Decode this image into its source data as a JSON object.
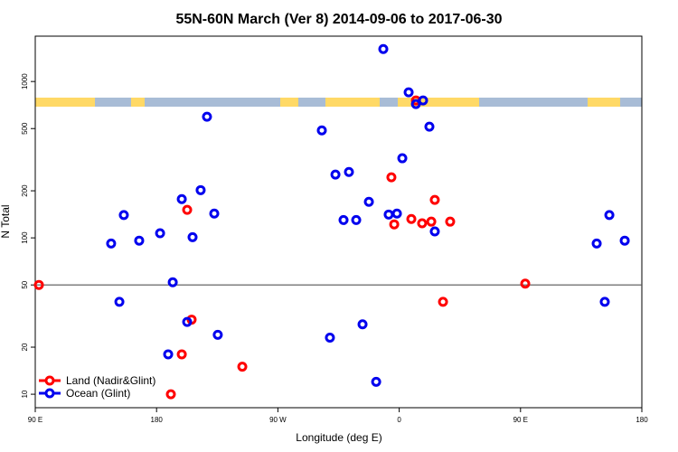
{
  "chart_data": {
    "type": "scatter",
    "title": "55N-60N March (Ver 8)   2014-09-06 to 2017-06-30",
    "xlabel": "Longitude (deg E)",
    "ylabel": "N Total",
    "xlim": [
      90,
      540
    ],
    "xticks": [
      {
        "value": 90,
        "label": "90 E"
      },
      180,
      {
        "value": 270,
        "label": "90 W"
      },
      {
        "value": 360,
        "label": "0"
      },
      {
        "value": 450,
        "label": "90 E"
      },
      {
        "value": 540,
        "label": "180"
      }
    ],
    "ylim": [
      8.2,
      1950
    ],
    "log_y": true,
    "yticks": [
      10,
      20,
      50,
      100,
      200,
      500,
      1000
    ],
    "hline": 50,
    "legend": "lower left",
    "series": [
      {
        "name": "Land (Nadir&Glint)",
        "color": "#ff0000",
        "x": [
          92.7,
          202.7,
          206,
          198.7,
          190.6,
          243.6,
          354.2,
          372.4,
          356.3,
          369,
          377,
          383.8,
          386.4,
          397.8,
          392.5,
          453.5
        ],
        "values": [
          50,
          151,
          30,
          18,
          10,
          15,
          244,
          757,
          122,
          132,
          124,
          127,
          175,
          127,
          39,
          51
        ]
      },
      {
        "name": "Ocean (Glint)",
        "color": "#0000ee",
        "x": [
          146.3,
          155.7,
          152.4,
          167.1,
          182.6,
          192,
          188.6,
          198.7,
          212.7,
          206.7,
          202.7,
          217.4,
          222.8,
          225.4,
          302.6,
          312.7,
          322.7,
          318.7,
          328.1,
          337.5,
          308.6,
          332.8,
          342.9,
          348.2,
          352.2,
          358.3,
          362.3,
          367,
          372.4,
          377.7,
          382.4,
          386.4,
          506.5,
          512.5,
          515.9,
          527.3
        ],
        "values": [
          92,
          140,
          39,
          96,
          107,
          52,
          18,
          177,
          202,
          101,
          29,
          595,
          143,
          24,
          487,
          254,
          264,
          130,
          130,
          170,
          23,
          28,
          12,
          1614,
          141,
          143,
          323,
          853,
          717,
          757,
          514,
          110,
          92,
          39,
          140,
          96
        ]
      }
    ]
  }
}
